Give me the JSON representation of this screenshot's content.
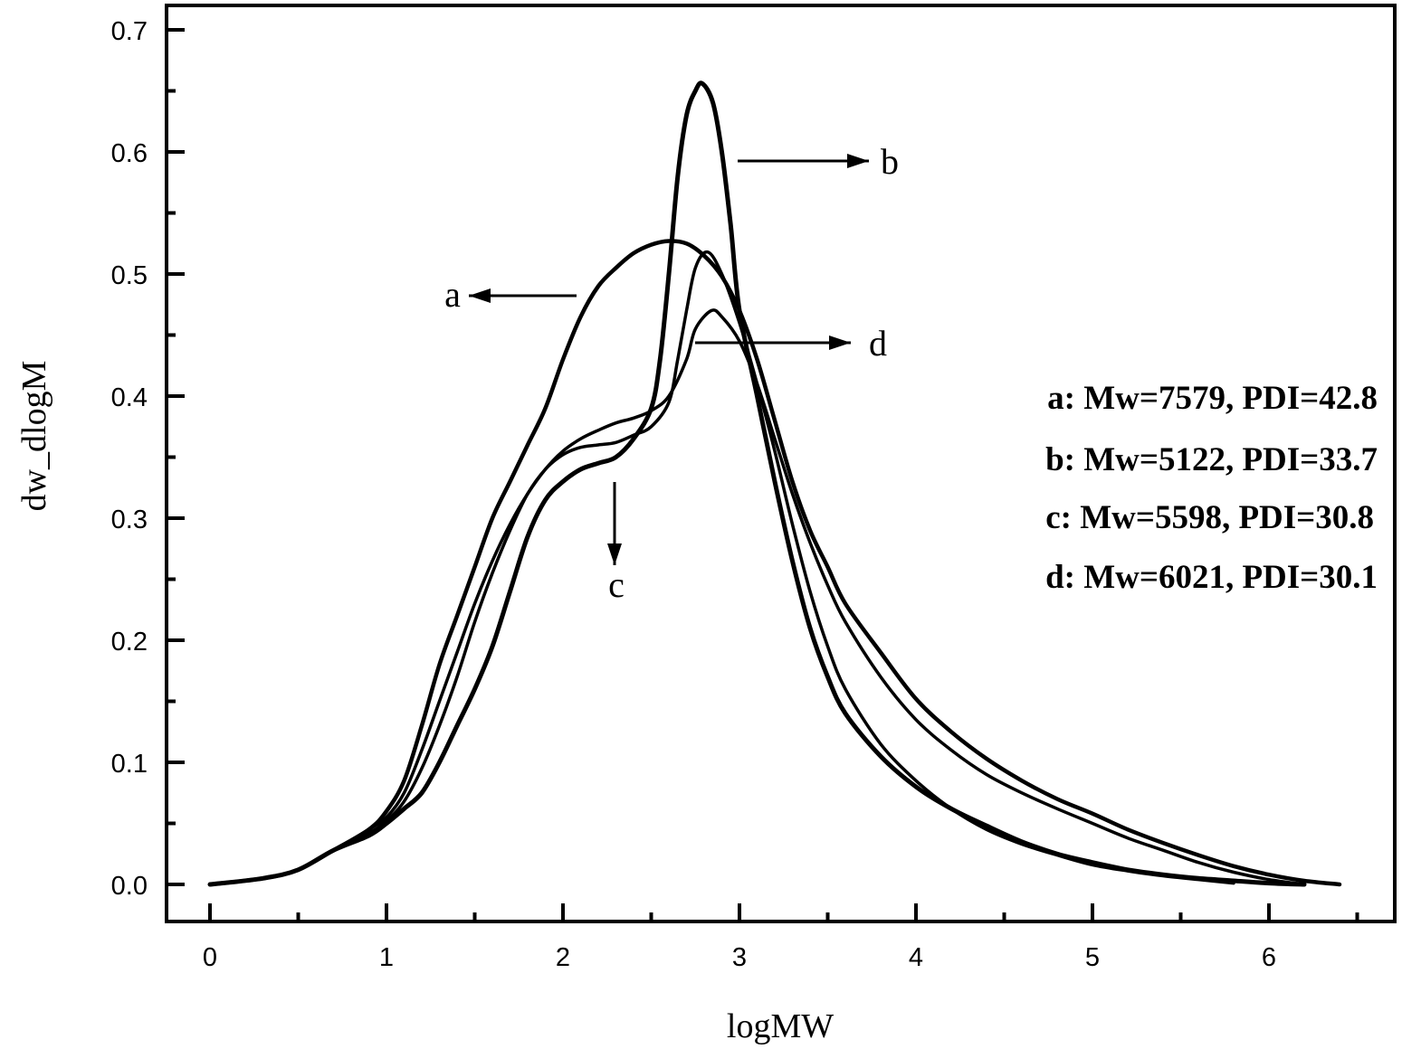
{
  "chart_data": {
    "type": "line",
    "xlabel": "logMW",
    "ylabel": "dw_dlogM",
    "xlim": [
      -0.25,
      6.65
    ],
    "ylim": [
      -0.03,
      0.72
    ],
    "grid": false,
    "x_ticks": [
      0,
      1,
      2,
      3,
      4,
      5,
      6
    ],
    "x_tick_labels": [
      "0",
      "1",
      "2",
      "3",
      "4",
      "5",
      "6"
    ],
    "x_minor_ticks": [
      0.5,
      1.5,
      2.5,
      3.5,
      4.5,
      5.5,
      6.5
    ],
    "y_ticks": [
      0.0,
      0.1,
      0.2,
      0.3,
      0.4,
      0.5,
      0.6,
      0.7
    ],
    "y_tick_labels": [
      "0.0",
      "0.1",
      "0.2",
      "0.3",
      "0.4",
      "0.5",
      "0.6",
      "0.7"
    ],
    "y_minor_ticks": [
      0.05,
      0.15,
      0.25,
      0.35,
      0.45,
      0.55,
      0.65
    ],
    "series": [
      {
        "name": "a",
        "x": [
          0.0,
          0.3,
          0.5,
          0.7,
          0.9,
          1.0,
          1.1,
          1.2,
          1.3,
          1.4,
          1.5,
          1.6,
          1.7,
          1.8,
          1.9,
          2.0,
          2.1,
          2.2,
          2.3,
          2.4,
          2.5,
          2.6,
          2.7,
          2.8,
          2.9,
          3.0,
          3.1,
          3.2,
          3.3,
          3.4,
          3.5,
          3.6,
          3.8,
          4.0,
          4.2,
          4.4,
          4.6,
          4.8,
          5.0,
          5.2,
          5.4,
          5.6,
          5.8,
          6.0,
          6.2,
          6.4
        ],
        "y": [
          0.0,
          0.005,
          0.012,
          0.028,
          0.045,
          0.06,
          0.085,
          0.13,
          0.18,
          0.22,
          0.26,
          0.3,
          0.33,
          0.36,
          0.39,
          0.43,
          0.465,
          0.49,
          0.505,
          0.517,
          0.524,
          0.527,
          0.525,
          0.515,
          0.498,
          0.47,
          0.43,
          0.38,
          0.33,
          0.29,
          0.26,
          0.23,
          0.19,
          0.152,
          0.125,
          0.103,
          0.085,
          0.07,
          0.058,
          0.045,
          0.034,
          0.024,
          0.015,
          0.008,
          0.003,
          0.0
        ]
      },
      {
        "name": "b",
        "x": [
          0.0,
          0.3,
          0.5,
          0.7,
          0.9,
          1.0,
          1.1,
          1.2,
          1.3,
          1.4,
          1.5,
          1.6,
          1.7,
          1.8,
          1.9,
          2.0,
          2.1,
          2.2,
          2.3,
          2.4,
          2.5,
          2.55,
          2.6,
          2.65,
          2.7,
          2.75,
          2.79,
          2.85,
          2.9,
          2.95,
          3.0,
          3.1,
          3.2,
          3.3,
          3.4,
          3.5,
          3.6,
          3.8,
          4.0,
          4.2,
          4.4,
          4.6,
          4.8,
          5.0,
          5.2,
          5.4,
          5.6,
          5.8,
          6.0,
          6.2
        ],
        "y": [
          0.0,
          0.005,
          0.012,
          0.028,
          0.04,
          0.05,
          0.062,
          0.075,
          0.1,
          0.13,
          0.16,
          0.195,
          0.24,
          0.285,
          0.315,
          0.33,
          0.34,
          0.345,
          0.35,
          0.365,
          0.39,
          0.43,
          0.5,
          0.58,
          0.63,
          0.65,
          0.656,
          0.64,
          0.6,
          0.54,
          0.47,
          0.4,
          0.33,
          0.265,
          0.21,
          0.17,
          0.14,
          0.105,
          0.08,
          0.062,
          0.048,
          0.035,
          0.025,
          0.018,
          0.012,
          0.008,
          0.005,
          0.003,
          0.001,
          0.0
        ]
      },
      {
        "name": "c",
        "x": [
          0.0,
          0.3,
          0.5,
          0.7,
          0.9,
          1.0,
          1.1,
          1.2,
          1.3,
          1.4,
          1.5,
          1.6,
          1.7,
          1.8,
          1.9,
          2.0,
          2.1,
          2.2,
          2.3,
          2.4,
          2.5,
          2.6,
          2.65,
          2.7,
          2.75,
          2.82,
          2.9,
          3.0,
          3.1,
          3.2,
          3.3,
          3.4,
          3.5,
          3.6,
          3.8,
          4.0,
          4.2,
          4.4,
          4.6,
          4.8,
          5.0,
          5.2,
          5.4,
          5.6,
          5.8
        ],
        "y": [
          0.0,
          0.005,
          0.012,
          0.028,
          0.042,
          0.052,
          0.068,
          0.095,
          0.13,
          0.17,
          0.215,
          0.255,
          0.29,
          0.32,
          0.34,
          0.352,
          0.358,
          0.36,
          0.362,
          0.368,
          0.375,
          0.395,
          0.43,
          0.47,
          0.505,
          0.518,
          0.5,
          0.46,
          0.41,
          0.355,
          0.295,
          0.24,
          0.195,
          0.16,
          0.115,
          0.085,
          0.062,
          0.045,
          0.033,
          0.024,
          0.016,
          0.011,
          0.007,
          0.004,
          0.001
        ]
      },
      {
        "name": "d",
        "x": [
          0.0,
          0.3,
          0.5,
          0.7,
          0.9,
          1.0,
          1.1,
          1.2,
          1.3,
          1.4,
          1.5,
          1.6,
          1.7,
          1.8,
          1.9,
          2.0,
          2.1,
          2.2,
          2.3,
          2.4,
          2.5,
          2.6,
          2.7,
          2.75,
          2.84,
          2.9,
          3.0,
          3.1,
          3.2,
          3.3,
          3.4,
          3.5,
          3.6,
          3.8,
          4.0,
          4.2,
          4.4,
          4.6,
          4.8,
          5.0,
          5.2,
          5.4,
          5.6,
          5.8,
          6.0,
          6.2
        ],
        "y": [
          0.0,
          0.005,
          0.012,
          0.028,
          0.045,
          0.055,
          0.075,
          0.11,
          0.15,
          0.19,
          0.23,
          0.265,
          0.295,
          0.32,
          0.34,
          0.355,
          0.365,
          0.372,
          0.378,
          0.382,
          0.388,
          0.4,
          0.43,
          0.455,
          0.47,
          0.465,
          0.445,
          0.41,
          0.365,
          0.32,
          0.28,
          0.245,
          0.215,
          0.17,
          0.135,
          0.11,
          0.09,
          0.075,
          0.062,
          0.05,
          0.038,
          0.028,
          0.018,
          0.01,
          0.004,
          0.0
        ]
      }
    ],
    "annotations": [
      {
        "label": "a",
        "series": "a",
        "arrow_direction": "left",
        "at": [
          2.07,
          0.48
        ]
      },
      {
        "label": "b",
        "series": "b",
        "arrow_direction": "right",
        "at": [
          2.99,
          0.594
        ]
      },
      {
        "label": "c",
        "series": "c",
        "arrow_direction": "down",
        "at": [
          2.29,
          0.33
        ]
      },
      {
        "label": "d",
        "series": "d",
        "arrow_direction": "right",
        "at": [
          2.75,
          0.444
        ]
      }
    ],
    "legend": {
      "placement": "right",
      "entries": [
        "a: Mw=7579, PDI=42.8",
        "b: Mw=5122, PDI=33.7",
        "c: Mw=5598, PDI=30.8",
        "d: Mw=6021, PDI=30.1"
      ]
    }
  },
  "colors": {
    "line": "#000000",
    "background": "#ffffff"
  }
}
